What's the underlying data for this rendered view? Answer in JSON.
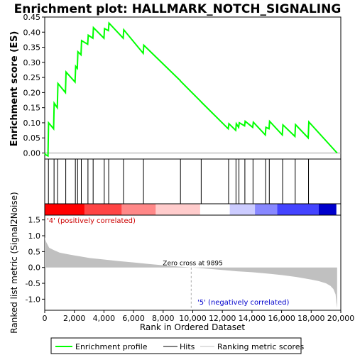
{
  "chart_data": {
    "type": "line",
    "title": "Enrichment plot: HALLMARK_NOTCH_SIGNALING",
    "colors": {
      "profile": "#00ff00",
      "hits": "#000000",
      "metric": "#c0c0c0",
      "zero_line": "#aaaaaa"
    },
    "top_panel": {
      "ylabel": "Enrichment score (ES)",
      "ylim": [
        -0.02,
        0.45
      ],
      "yticks": [
        "0.00",
        "0.05",
        "0.10",
        "0.15",
        "0.20",
        "0.25",
        "0.30",
        "0.35",
        "0.40",
        "0.45"
      ],
      "ytick_values": [
        0.0,
        0.05,
        0.1,
        0.15,
        0.2,
        0.25,
        0.3,
        0.35,
        0.4,
        0.45
      ],
      "es_profile": {
        "name": "Enrichment profile",
        "x": [
          0,
          40,
          220,
          260,
          600,
          640,
          850,
          890,
          1400,
          1440,
          2050,
          2090,
          2200,
          2240,
          2450,
          2490,
          2900,
          2940,
          3250,
          3290,
          4000,
          4040,
          4300,
          4340,
          5300,
          5340,
          6650,
          6690,
          9150,
          9190,
          10550,
          10590,
          12400,
          12440,
          12900,
          12940,
          13100,
          13140,
          13500,
          13540,
          14050,
          14090,
          14900,
          14940,
          15150,
          15190,
          16050,
          16090,
          16900,
          16940,
          17800,
          17840,
          19750
        ],
        "y": [
          0.0,
          -0.005,
          -0.01,
          0.1,
          0.08,
          0.165,
          0.15,
          0.23,
          0.2,
          0.268,
          0.235,
          0.287,
          0.28,
          0.335,
          0.325,
          0.372,
          0.36,
          0.39,
          0.38,
          0.415,
          0.38,
          0.412,
          0.405,
          0.43,
          0.38,
          0.408,
          0.33,
          0.357,
          0.24,
          0.237,
          0.17,
          0.168,
          0.08,
          0.097,
          0.075,
          0.097,
          0.085,
          0.1,
          0.09,
          0.105,
          0.085,
          0.102,
          0.06,
          0.085,
          0.08,
          0.105,
          0.06,
          0.093,
          0.055,
          0.094,
          0.05,
          0.103,
          0.0
        ]
      }
    },
    "hits": {
      "name": "Hits",
      "x": [
        250,
        630,
        870,
        1420,
        2070,
        2220,
        2470,
        2920,
        3270,
        4020,
        4320,
        5320,
        6670,
        9170,
        10570,
        12420,
        12920,
        13120,
        13520,
        14070,
        14920,
        15170,
        16070,
        16920,
        17820
      ]
    },
    "rank_bar": {
      "colors": [
        "#ff0000",
        "#ff4444",
        "#ff8888",
        "#ffcccc",
        "#ffffff",
        "#ccccff",
        "#8888ff",
        "#4444ff",
        "#0000cc"
      ],
      "stops": [
        0,
        2700,
        5200,
        7500,
        10500,
        12500,
        14200,
        15700,
        18500,
        19700
      ]
    },
    "bottom_panel": {
      "name": "Ranking metric scores",
      "ylabel": "Ranked list metric (Signal2Noise)",
      "xlabel": "Rank in Ordered Dataset",
      "ylim": [
        -1.35,
        1.65
      ],
      "yticks": [
        "1.5",
        "1.0",
        "0.5",
        "0.0",
        "-0.5",
        "-1.0"
      ],
      "ytick_values": [
        1.5,
        1.0,
        0.5,
        0.0,
        -0.5,
        -1.0
      ],
      "xlim": [
        0,
        20000
      ],
      "xticks": [
        "0",
        "2,000",
        "4,000",
        "6,000",
        "8,000",
        "10,000",
        "12,000",
        "14,000",
        "16,000",
        "18,000",
        "20,000"
      ],
      "xtick_values": [
        0,
        2000,
        4000,
        6000,
        8000,
        10000,
        12000,
        14000,
        16000,
        18000,
        20000
      ],
      "metric_x": [
        0,
        100,
        300,
        600,
        1000,
        1500,
        2000,
        3000,
        4000,
        5000,
        6000,
        7000,
        8000,
        9000,
        9895,
        11000,
        12000,
        13000,
        14000,
        15000,
        16000,
        17000,
        18000,
        18500,
        19000,
        19300,
        19500,
        19650,
        19700,
        19750
      ],
      "metric_y": [
        0.95,
        0.8,
        0.62,
        0.55,
        0.47,
        0.42,
        0.38,
        0.3,
        0.25,
        0.2,
        0.16,
        0.11,
        0.07,
        0.03,
        0.0,
        -0.04,
        -0.08,
        -0.12,
        -0.15,
        -0.19,
        -0.24,
        -0.3,
        -0.38,
        -0.43,
        -0.5,
        -0.58,
        -0.68,
        -0.85,
        -1.1,
        -1.28
      ],
      "zero_cross_label": "Zero cross at 9895",
      "zero_cross_x": 9895,
      "pos_label": "'4' (positively correlated)",
      "neg_label": "'5' (negatively correlated)"
    },
    "legend": {
      "position": "bottom",
      "entries": [
        "Enrichment profile",
        "Hits",
        "Ranking metric scores"
      ]
    }
  }
}
